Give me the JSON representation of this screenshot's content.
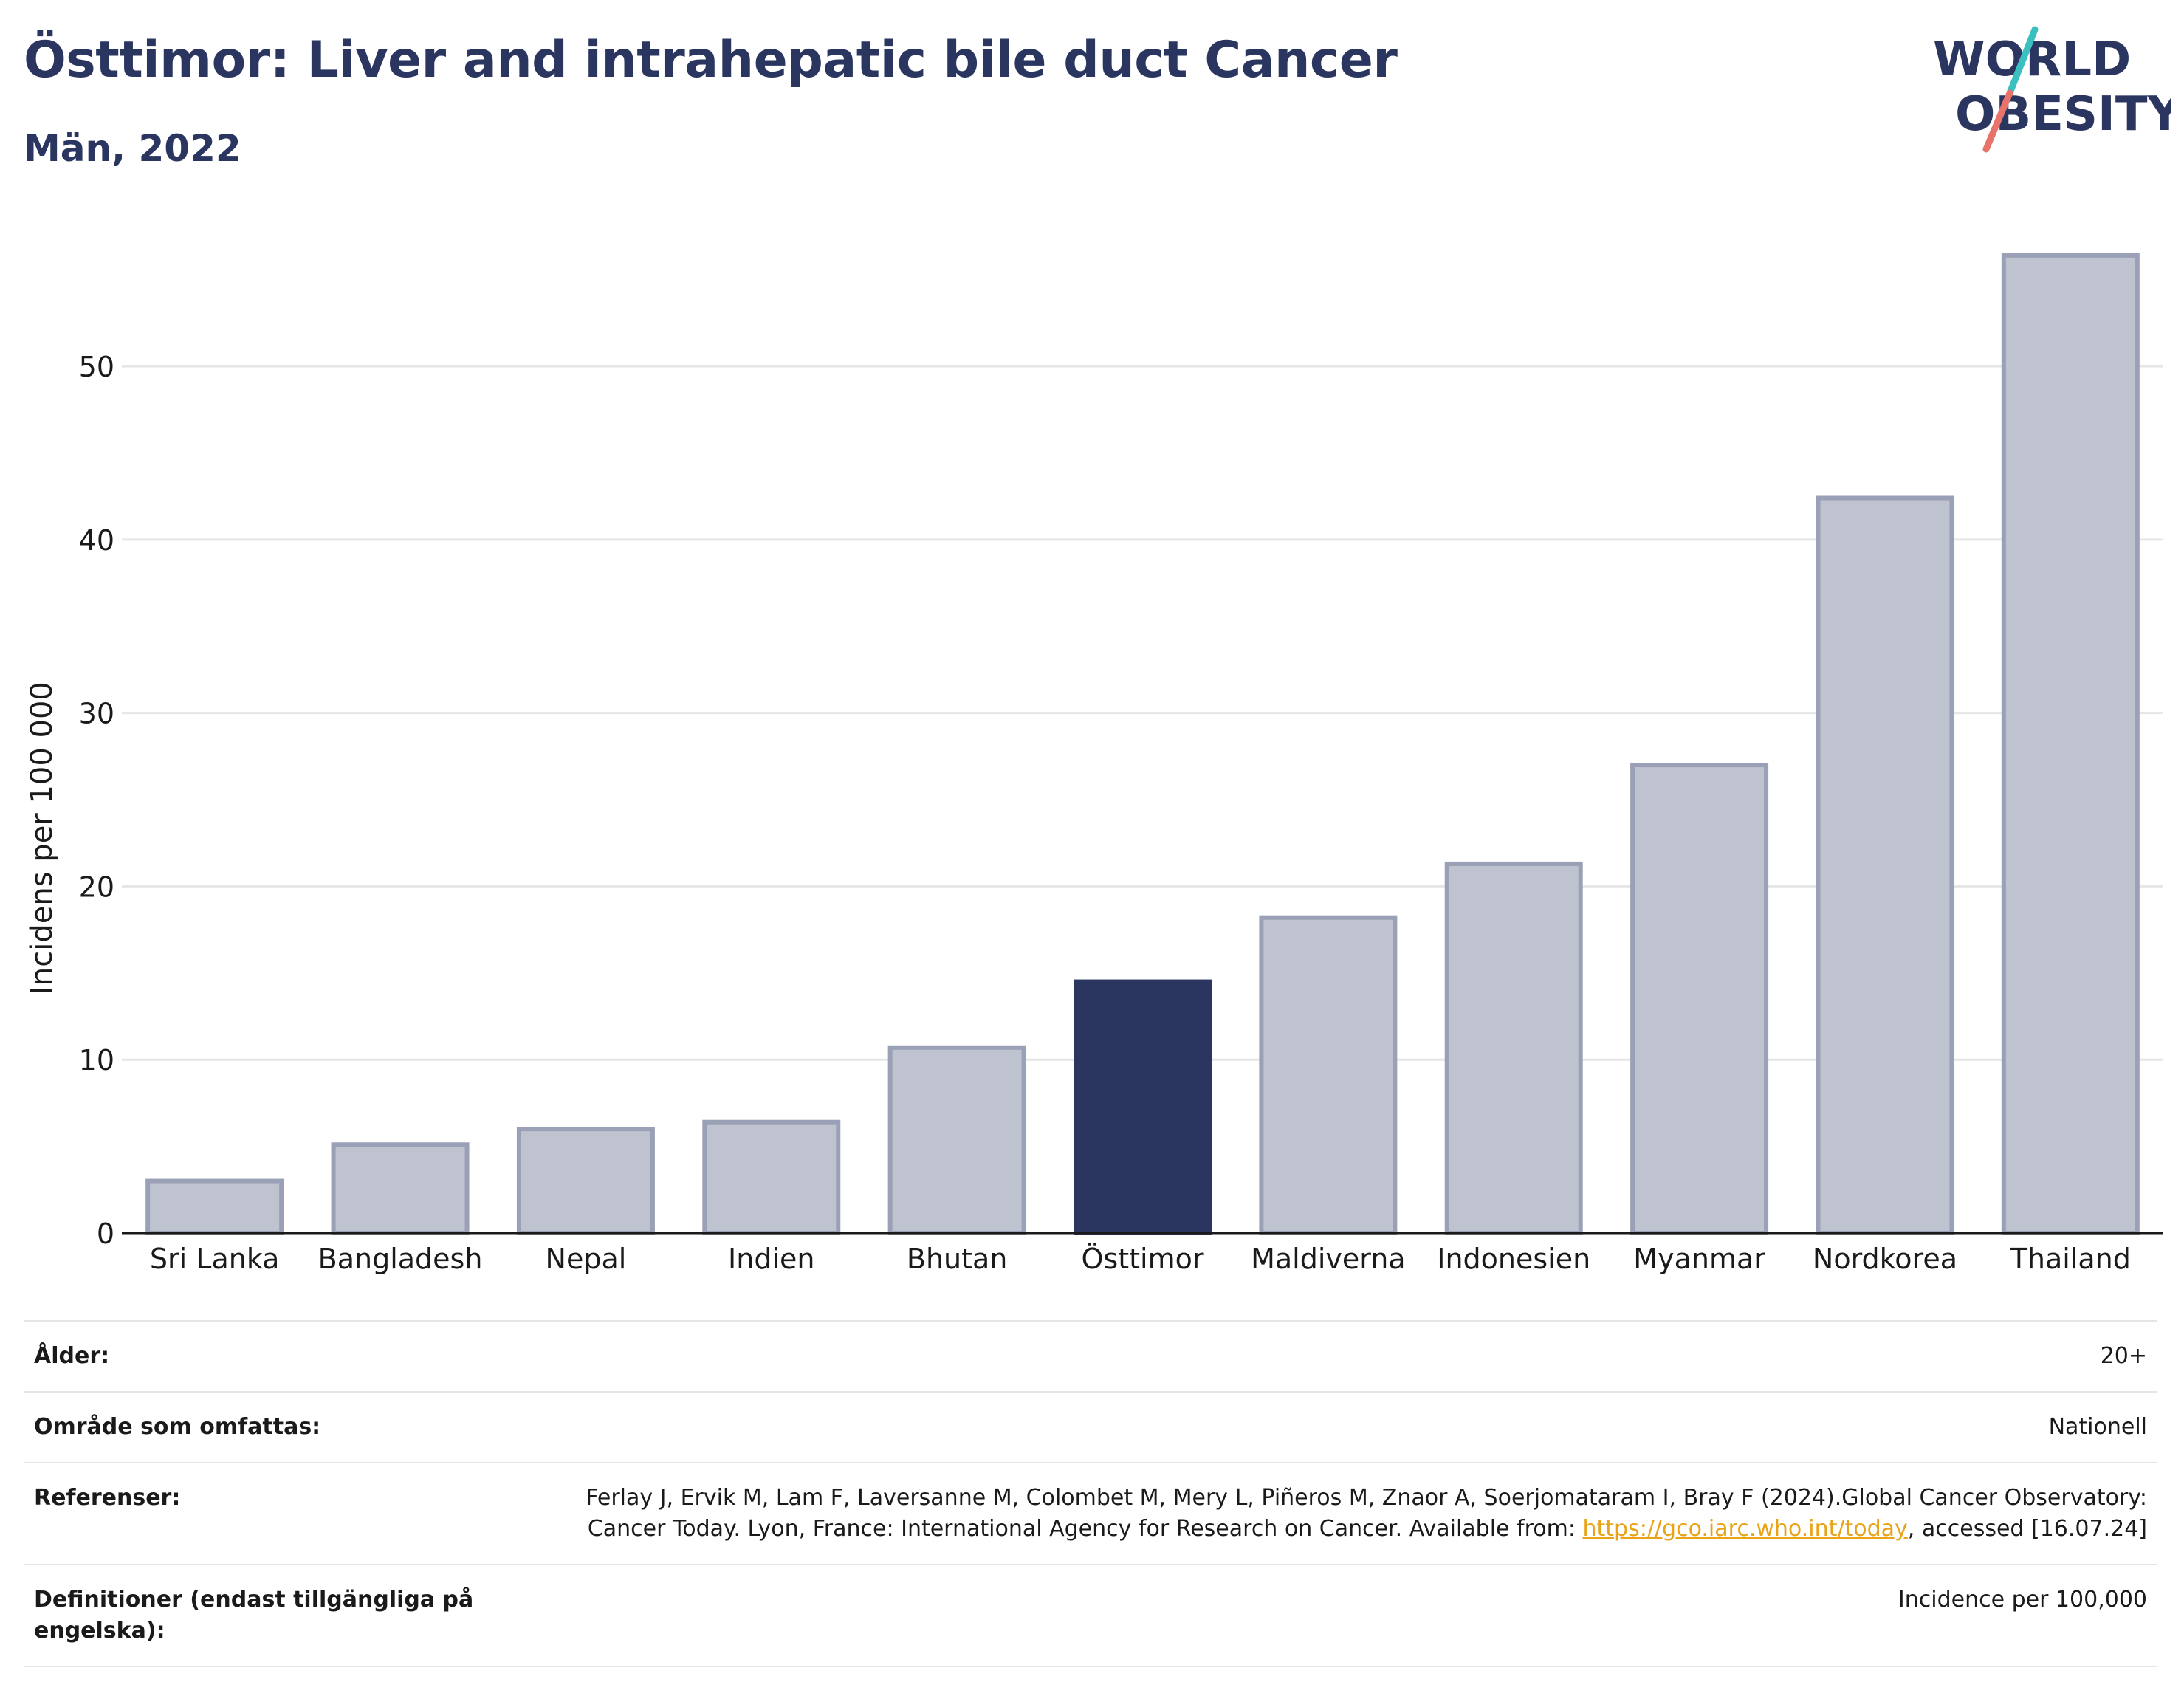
{
  "header": {
    "title": "Östtimor: Liver and intrahepatic bile duct Cancer",
    "subtitle": "Män, 2022"
  },
  "logo": {
    "line1": "WORLD",
    "line2": "OBESITY",
    "colors": {
      "text": "#2a3560",
      "slash_top": "#3bbfbf",
      "slash_bottom": "#e8736a"
    }
  },
  "colors": {
    "highlight": "#2a3560",
    "bar": "#bfc3d0",
    "bar_border": "#9aa0b5",
    "grid": "#e6e6e6",
    "axis": "#1a1a1a"
  },
  "chart_data": {
    "type": "bar",
    "title": "Östtimor: Liver and intrahepatic bile duct Cancer",
    "subtitle": "Män, 2022",
    "xlabel": "",
    "ylabel": "Incidens per 100 000",
    "categories": [
      "Sri Lanka",
      "Bangladesh",
      "Nepal",
      "Indien",
      "Bhutan",
      "Östtimor",
      "Maldiverna",
      "Indonesien",
      "Myanmar",
      "Nordkorea",
      "Thailand"
    ],
    "values": [
      3.0,
      5.1,
      6.0,
      6.4,
      10.7,
      14.5,
      18.2,
      21.3,
      27.0,
      42.4,
      56.4
    ],
    "highlight": "Östtimor",
    "ylim": [
      0,
      57.5
    ],
    "yticks": [
      0,
      10,
      20,
      30,
      40,
      50
    ],
    "grid": true,
    "legend": "none"
  },
  "meta": {
    "age_label": "Ålder:",
    "age_value": "20+",
    "area_label": "Område som omfattas:",
    "area_value": "Nationell",
    "ref_label": "Referenser:",
    "ref_text_1": "Ferlay J, Ervik M, Lam F, Laversanne M, Colombet M, Mery L, Piñeros M, Znaor A, Soerjomataram I, Bray F (2024).Global Cancer Observatory: Cancer Today. Lyon, France: International Agency for Research on Cancer. Available from: ",
    "ref_link": "https://gco.iarc.who.int/today",
    "ref_text_2": ", accessed [16.07.24]",
    "def_label": "Definitioner (endast tillgängliga på engelska):",
    "def_value": "Incidence per 100,000"
  }
}
